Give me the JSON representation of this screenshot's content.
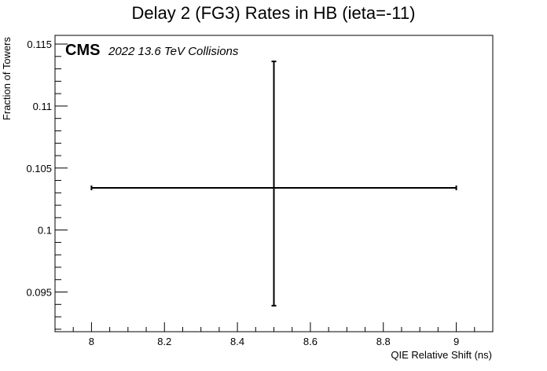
{
  "chart_data": {
    "type": "scatter",
    "title": "Delay 2 (FG3) Rates in HB (ieta=-11)",
    "xlabel": "QIE Relative Shift (ns)",
    "ylabel": "Fraction of Towers",
    "xlim": [
      7.9,
      9.1
    ],
    "ylim": [
      0.0918,
      0.1157
    ],
    "x_ticks": [
      "8",
      "8.2",
      "8.4",
      "8.6",
      "8.8",
      "9"
    ],
    "y_ticks": [
      "0.095",
      "0.1",
      "0.105",
      "0.11",
      "0.115"
    ],
    "grid": false,
    "points": [
      {
        "x": 8.5,
        "y": 0.1034,
        "x_low": 8.0,
        "x_high": 9.0,
        "y_low": 0.0939,
        "y_high": 0.1136
      }
    ],
    "annotation_main": "CMS",
    "annotation_sub": "2022 13.6 TeV Collisions"
  }
}
